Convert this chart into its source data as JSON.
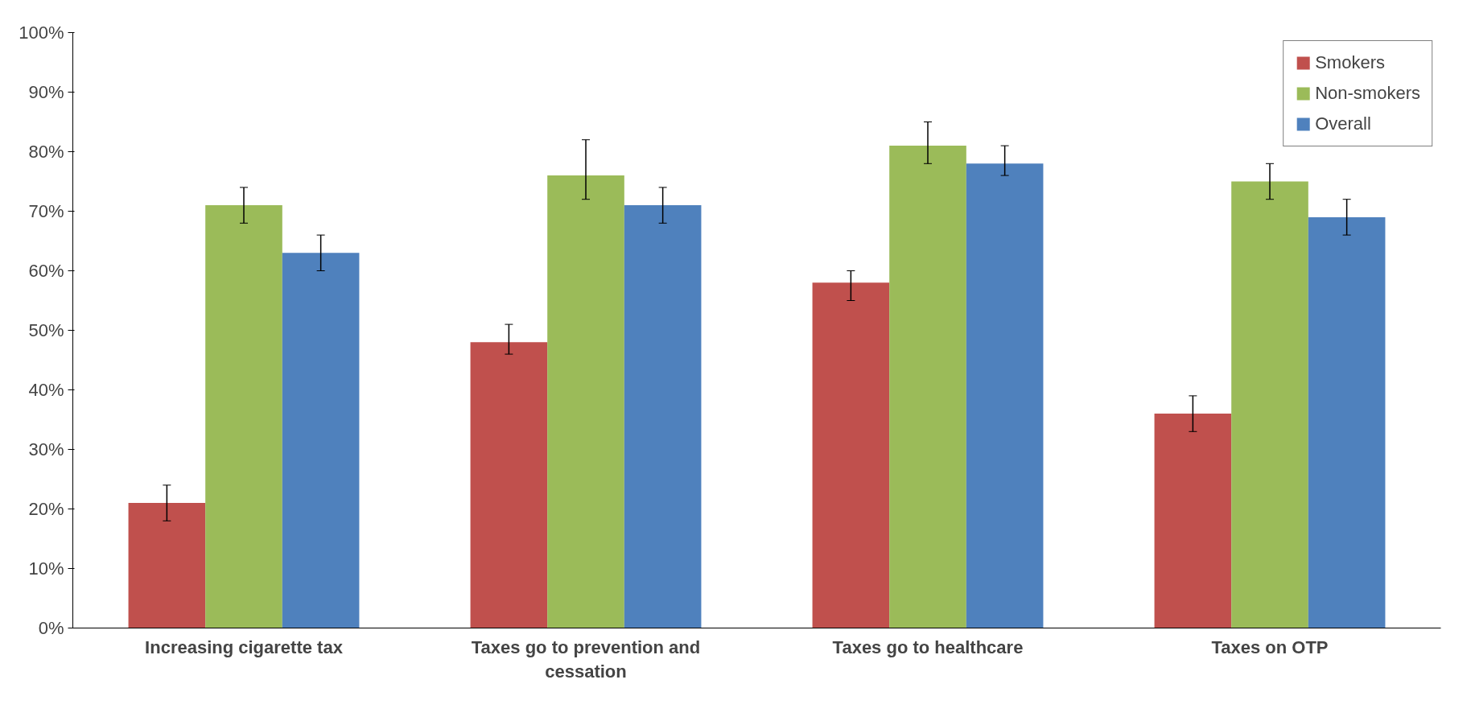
{
  "chart_data": {
    "type": "bar",
    "categories": [
      "Increasing cigarette tax",
      "Taxes go to prevention and cessation",
      "Taxes go to healthcare",
      "Taxes on OTP"
    ],
    "series": [
      {
        "name": "Smokers",
        "color": "#c0504d",
        "values": [
          21,
          48,
          58,
          36
        ],
        "errors": [
          [
            18,
            24
          ],
          [
            46,
            51
          ],
          [
            55,
            60
          ],
          [
            33,
            39
          ]
        ]
      },
      {
        "name": "Non-smokers",
        "color": "#9bbb59",
        "values": [
          71,
          76,
          81,
          75
        ],
        "errors": [
          [
            68,
            74
          ],
          [
            72,
            82
          ],
          [
            78,
            85
          ],
          [
            72,
            78
          ]
        ]
      },
      {
        "name": "Overall",
        "color": "#4f81bd",
        "values": [
          63,
          71,
          78,
          69
        ],
        "errors": [
          [
            60,
            66
          ],
          [
            68,
            74
          ],
          [
            76,
            81
          ],
          [
            66,
            72
          ]
        ]
      }
    ],
    "ylim": [
      0,
      100
    ],
    "yticks": [
      {
        "value": 0,
        "label": "0%"
      },
      {
        "value": 10,
        "label": "10%"
      },
      {
        "value": 20,
        "label": "20%"
      },
      {
        "value": 30,
        "label": "30%"
      },
      {
        "value": 40,
        "label": "40%"
      },
      {
        "value": 50,
        "label": "50%"
      },
      {
        "value": 60,
        "label": "60%"
      },
      {
        "value": 70,
        "label": "70%"
      },
      {
        "value": 80,
        "label": "80%"
      },
      {
        "value": 90,
        "label": "90%"
      },
      {
        "value": 100,
        "label": "100%"
      }
    ],
    "grid": false,
    "legend": "top right"
  }
}
